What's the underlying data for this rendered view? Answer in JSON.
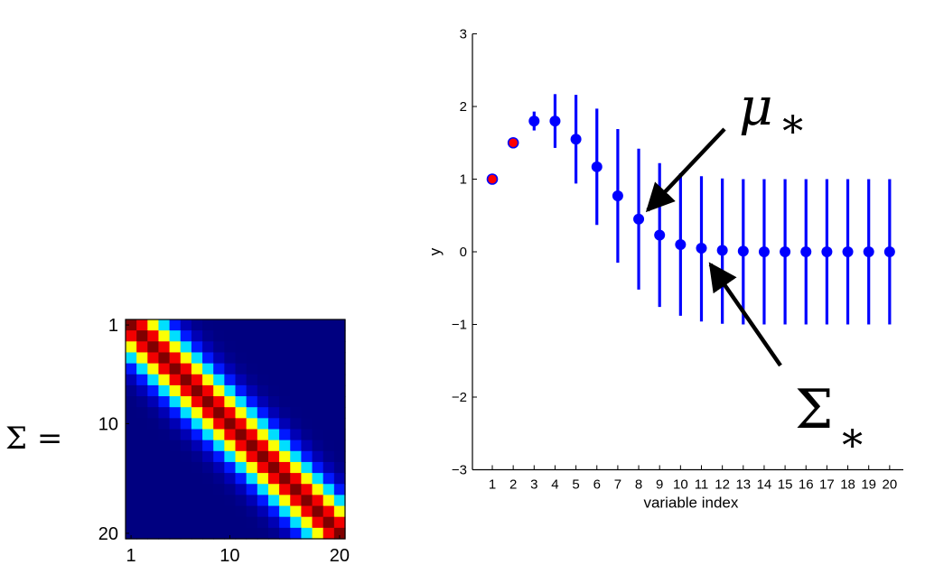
{
  "chart_data": [
    {
      "type": "heatmap",
      "label": "Σ =",
      "rows": 20,
      "cols": 20,
      "colormap": "jet",
      "bandwidth": 4.2,
      "tick_labels": [
        "1",
        "10",
        "20"
      ],
      "tick_values": [
        1,
        10,
        20
      ]
    },
    {
      "type": "scatter",
      "xlabel": "variable index",
      "ylabel": "y",
      "ylim": [
        -3,
        3
      ],
      "yticks": [
        "−3",
        "−2",
        "−1",
        "0",
        "1",
        "2",
        "3"
      ],
      "ytick_values": [
        -3,
        -2,
        -1,
        0,
        1,
        2,
        3
      ],
      "x": [
        1,
        2,
        3,
        4,
        5,
        6,
        7,
        8,
        9,
        10,
        11,
        12,
        13,
        14,
        15,
        16,
        17,
        18,
        19,
        20
      ],
      "xtick_labels": [
        "1",
        "2",
        "3",
        "4",
        "5",
        "6",
        "7",
        "8",
        "9",
        "10",
        "11",
        "12",
        "13",
        "14",
        "15",
        "16",
        "17",
        "18",
        "19",
        "20"
      ],
      "observed_x": [
        1,
        2
      ],
      "mean": [
        1,
        1.5,
        1.8,
        1.8,
        1.55,
        1.17,
        0.77,
        0.45,
        0.23,
        0.1,
        0.05,
        0.02,
        0.01,
        0.0,
        0.0,
        0.0,
        0.0,
        0.0,
        0.0,
        0.0
      ],
      "err_low": [
        1,
        1.5,
        1.67,
        1.43,
        0.94,
        0.37,
        -0.15,
        -0.52,
        -0.76,
        -0.88,
        -0.96,
        -0.99,
        -1.0,
        -1.0,
        -1.0,
        -1.0,
        -1.0,
        -1.0,
        -1.0,
        -1.0
      ],
      "err_high": [
        1,
        1.5,
        1.93,
        2.17,
        2.16,
        1.97,
        1.69,
        1.42,
        1.22,
        1.08,
        1.04,
        1.01,
        1.0,
        1.0,
        1.0,
        1.0,
        1.0,
        1.0,
        1.0,
        1.0
      ],
      "colors": {
        "points": "#0000ff",
        "observed": "#ff0000"
      },
      "annotations": [
        {
          "text": "μ",
          "sub": "∗",
          "target_x": 8
        },
        {
          "text": "Σ",
          "sub": "∗",
          "target_x": 11
        }
      ]
    }
  ]
}
